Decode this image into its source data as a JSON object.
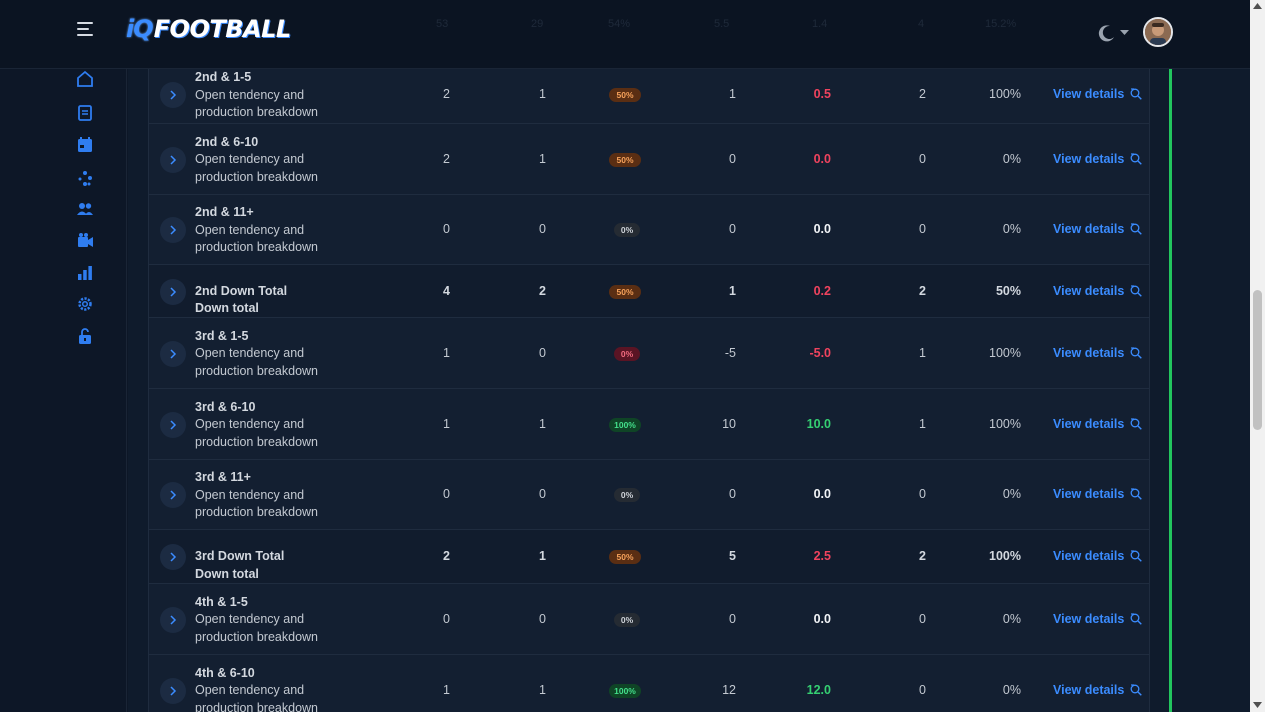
{
  "app": {
    "logo_iq": "iQ",
    "logo_rest": "FOOTBALL"
  },
  "header_ghost": [
    "53",
    "29",
    "54%",
    "5.5",
    "1.4",
    "4",
    "15.2%"
  ],
  "sidebar": {
    "items": [
      "home-icon",
      "playbook-icon",
      "calendar-icon",
      "tendencies-icon",
      "team-icon",
      "film-icon",
      "stats-icon",
      "settings-icon",
      "unlock-icon"
    ]
  },
  "colors": {
    "accent": "#3b8cff",
    "success": "#22c55e",
    "danger": "#f0435e"
  },
  "rows": [
    {
      "title": "2nd & 1-5",
      "sub": "Open tendency and",
      "sub2": "production breakdown",
      "plays": "2",
      "success": "1",
      "rate": "50%",
      "rate_style": "orange",
      "yards": "1",
      "epa": "0.5",
      "epa_style": "red",
      "tds": "2",
      "pct": "100%",
      "view": "View details",
      "total": false
    },
    {
      "title": "2nd & 6-10",
      "sub": "Open tendency and",
      "sub2": "production breakdown",
      "plays": "2",
      "success": "1",
      "rate": "50%",
      "rate_style": "orange",
      "yards": "0",
      "epa": "0.0",
      "epa_style": "red",
      "tds": "0",
      "pct": "0%",
      "view": "View details",
      "total": false
    },
    {
      "title": "2nd & 11+",
      "sub": "Open tendency and",
      "sub2": "production breakdown",
      "plays": "0",
      "success": "0",
      "rate": "0%",
      "rate_style": "gray",
      "yards": "0",
      "epa": "0.0",
      "epa_style": "white",
      "tds": "0",
      "pct": "0%",
      "view": "View details",
      "total": false
    },
    {
      "title": "2nd Down Total",
      "sub": "Down total",
      "sub2": "",
      "plays": "4",
      "success": "2",
      "rate": "50%",
      "rate_style": "orange",
      "yards": "1",
      "epa": "0.2",
      "epa_style": "red",
      "tds": "2",
      "pct": "50%",
      "view": "View details",
      "total": true
    },
    {
      "title": "3rd & 1-5",
      "sub": "Open tendency and",
      "sub2": "production breakdown",
      "plays": "1",
      "success": "0",
      "rate": "0%",
      "rate_style": "red",
      "yards": "-5",
      "epa": "-5.0",
      "epa_style": "red",
      "tds": "1",
      "pct": "100%",
      "view": "View details",
      "total": false
    },
    {
      "title": "3rd & 6-10",
      "sub": "Open tendency and",
      "sub2": "production breakdown",
      "plays": "1",
      "success": "1",
      "rate": "100%",
      "rate_style": "green",
      "yards": "10",
      "epa": "10.0",
      "epa_style": "green",
      "tds": "1",
      "pct": "100%",
      "view": "View details",
      "total": false
    },
    {
      "title": "3rd & 11+",
      "sub": "Open tendency and",
      "sub2": "production breakdown",
      "plays": "0",
      "success": "0",
      "rate": "0%",
      "rate_style": "gray",
      "yards": "0",
      "epa": "0.0",
      "epa_style": "white",
      "tds": "0",
      "pct": "0%",
      "view": "View details",
      "total": false
    },
    {
      "title": "3rd Down Total",
      "sub": "Down total",
      "sub2": "",
      "plays": "2",
      "success": "1",
      "rate": "50%",
      "rate_style": "orange",
      "yards": "5",
      "epa": "2.5",
      "epa_style": "red",
      "tds": "2",
      "pct": "100%",
      "view": "View details",
      "total": true
    },
    {
      "title": "4th & 1-5",
      "sub": "Open tendency and",
      "sub2": "production breakdown",
      "plays": "0",
      "success": "0",
      "rate": "0%",
      "rate_style": "gray",
      "yards": "0",
      "epa": "0.0",
      "epa_style": "white",
      "tds": "0",
      "pct": "0%",
      "view": "View details",
      "total": false
    },
    {
      "title": "4th & 6-10",
      "sub": "Open tendency and",
      "sub2": "production breakdown",
      "plays": "1",
      "success": "1",
      "rate": "100%",
      "rate_style": "green",
      "yards": "12",
      "epa": "12.0",
      "epa_style": "green",
      "tds": "0",
      "pct": "0%",
      "view": "View details",
      "total": false
    }
  ]
}
